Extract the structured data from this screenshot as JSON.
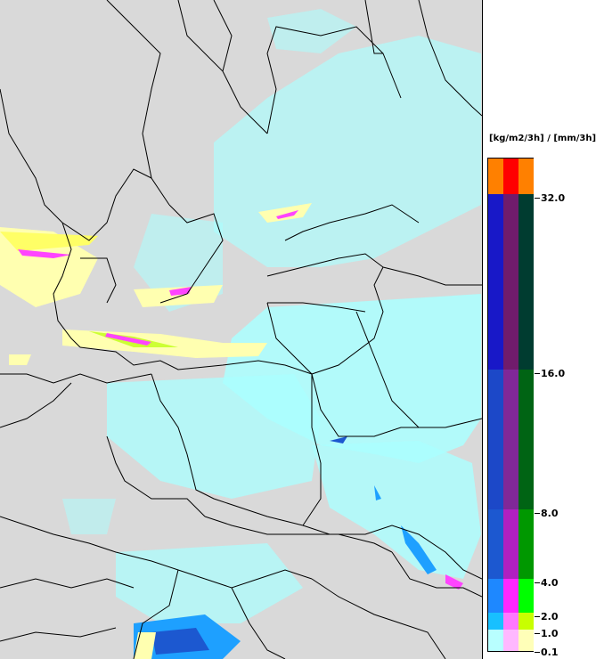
{
  "legend": {
    "unit": "[kg/m2/3h] / [mm/3h]",
    "levels": [
      "32.0",
      "16.0",
      "8.0",
      "4.0",
      "2.0",
      "1.0",
      "0.1"
    ],
    "bands": [
      {
        "colors": [
          "#ff8000",
          "#ff0000",
          "#ff8000"
        ]
      },
      {
        "colors": [
          "#1818c8",
          "#701c6c",
          "#003c30"
        ]
      },
      {
        "colors": [
          "#1c48c8",
          "#802898",
          "#006414"
        ]
      },
      {
        "colors": [
          "#1c58d0",
          "#b020c0",
          "#009800"
        ]
      },
      {
        "colors": [
          "#1e88ff",
          "#ff28ff",
          "#00ff00"
        ]
      },
      {
        "colors": [
          "#18c0ff",
          "#ff78ff",
          "#c8ff00"
        ]
      },
      {
        "colors": [
          "#b8ffff",
          "#ffb8ff",
          "#ffffb8"
        ]
      }
    ]
  },
  "map": {
    "background": "#d9d9d9",
    "border_color": "#000000",
    "light_precip": "#aaffff",
    "snow_light": "#ffffb0",
    "snow_mid": "#ccff33",
    "mixed": "#ff44ff",
    "rain_mid": "#1ea0ff",
    "rain_heavy": "#1c58d0"
  }
}
